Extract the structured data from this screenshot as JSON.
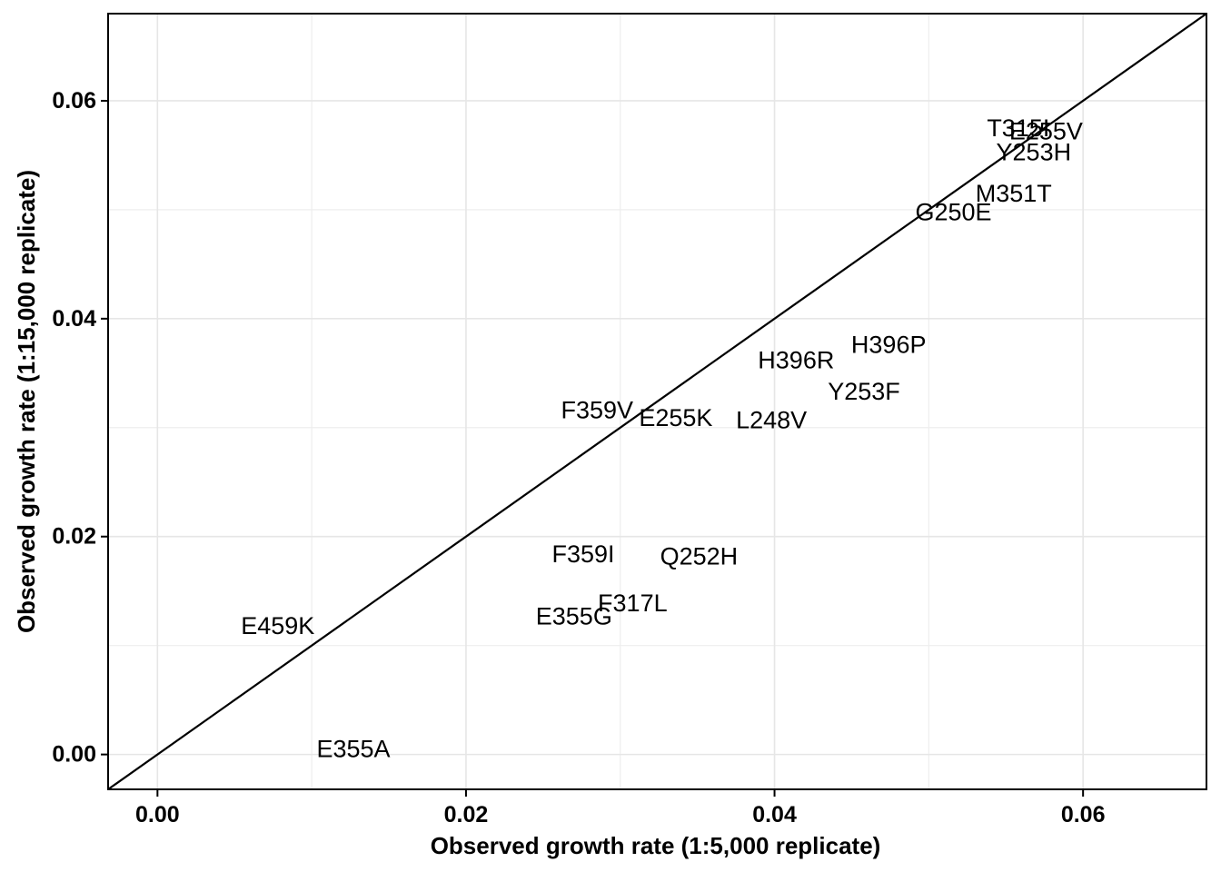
{
  "chart_data": {
    "type": "scatter",
    "title": "",
    "xlabel": "Observed growth rate (1:5,000 replicate)",
    "ylabel": "Observed growth rate (1:15,000 replicate)",
    "xlim": [
      -0.0032,
      0.068
    ],
    "ylim": [
      -0.0032,
      0.068
    ],
    "x_major_ticks": [
      0.0,
      0.02,
      0.04,
      0.06
    ],
    "x_tick_labels": [
      "0.00",
      "0.02",
      "0.04",
      "0.06"
    ],
    "y_major_ticks": [
      0.0,
      0.02,
      0.04,
      0.06
    ],
    "y_tick_labels": [
      "0.00",
      "0.02",
      "0.04",
      "0.06"
    ],
    "x_minor_grid": [
      0.01,
      0.03,
      0.05
    ],
    "y_minor_grid": [
      0.01,
      0.03,
      0.05
    ],
    "grid": true,
    "reference_line": "y = x",
    "points": [
      {
        "label": "T315I",
        "x": 0.0558,
        "y": 0.0575
      },
      {
        "label": "E255V",
        "x": 0.0576,
        "y": 0.0572
      },
      {
        "label": "Y253H",
        "x": 0.0568,
        "y": 0.0553
      },
      {
        "label": "M351T",
        "x": 0.0555,
        "y": 0.0515
      },
      {
        "label": "G250E",
        "x": 0.0516,
        "y": 0.0498
      },
      {
        "label": "H396P",
        "x": 0.0474,
        "y": 0.0376
      },
      {
        "label": "H396R",
        "x": 0.0414,
        "y": 0.0362
      },
      {
        "label": "Y253F",
        "x": 0.0458,
        "y": 0.0333
      },
      {
        "label": "F359V",
        "x": 0.0285,
        "y": 0.0316
      },
      {
        "label": "E255K",
        "x": 0.0336,
        "y": 0.0309
      },
      {
        "label": "L248V",
        "x": 0.0398,
        "y": 0.0307
      },
      {
        "label": "F359I",
        "x": 0.0276,
        "y": 0.0184
      },
      {
        "label": "Q252H",
        "x": 0.0351,
        "y": 0.0182
      },
      {
        "label": "F317L",
        "x": 0.0308,
        "y": 0.0139
      },
      {
        "label": "E355G",
        "x": 0.027,
        "y": 0.0127
      },
      {
        "label": "E459K",
        "x": 0.0078,
        "y": 0.0118
      },
      {
        "label": "E355A",
        "x": 0.0127,
        "y": 0.0005
      }
    ]
  }
}
